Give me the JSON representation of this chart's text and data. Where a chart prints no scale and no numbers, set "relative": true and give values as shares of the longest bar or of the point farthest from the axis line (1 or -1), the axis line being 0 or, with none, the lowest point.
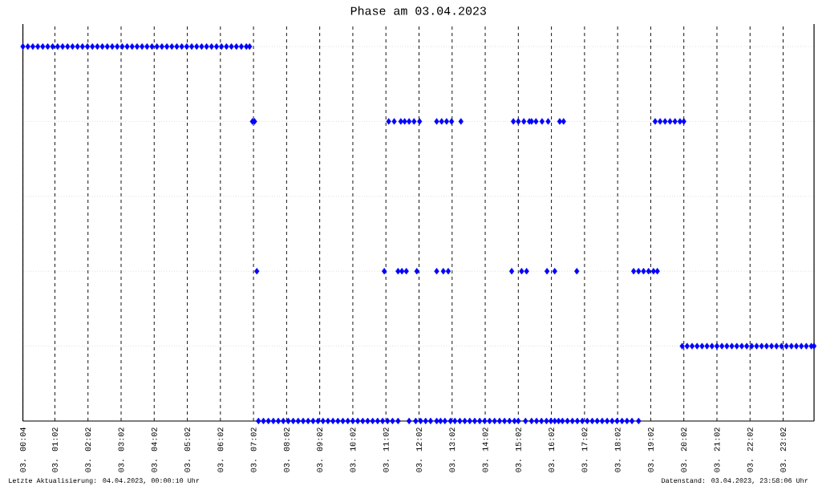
{
  "chart_data": {
    "type": "scatter",
    "title": "Phase am 03.04.2023",
    "relative": true,
    "color": "#0000ff",
    "marker": "diamond",
    "grid": true,
    "xlim": [
      "2023-04-03T00:04",
      "2023-04-03T23:58"
    ],
    "xticks": [
      {
        "value": "2023-04-03T00:04",
        "label": "03. 00:04"
      },
      {
        "value": "2023-04-03T01:02",
        "label": "03. 01:02"
      },
      {
        "value": "2023-04-03T02:02",
        "label": "03. 02:02"
      },
      {
        "value": "2023-04-03T03:02",
        "label": "03. 03:02"
      },
      {
        "value": "2023-04-03T04:02",
        "label": "03. 04:02"
      },
      {
        "value": "2023-04-03T05:02",
        "label": "03. 05:02"
      },
      {
        "value": "2023-04-03T06:02",
        "label": "03. 06:02"
      },
      {
        "value": "2023-04-03T07:02",
        "label": "03. 07:02"
      },
      {
        "value": "2023-04-03T08:02",
        "label": "03. 08:02"
      },
      {
        "value": "2023-04-03T09:02",
        "label": "03. 09:02"
      },
      {
        "value": "2023-04-03T10:02",
        "label": "03. 10:02"
      },
      {
        "value": "2023-04-03T11:02",
        "label": "03. 11:02"
      },
      {
        "value": "2023-04-03T12:02",
        "label": "03. 12:02"
      },
      {
        "value": "2023-04-03T13:02",
        "label": "03. 13:02"
      },
      {
        "value": "2023-04-03T14:02",
        "label": "03. 14:02"
      },
      {
        "value": "2023-04-03T15:02",
        "label": "03. 15:02"
      },
      {
        "value": "2023-04-03T16:02",
        "label": "03. 16:02"
      },
      {
        "value": "2023-04-03T17:02",
        "label": "03. 17:02"
      },
      {
        "value": "2023-04-03T18:02",
        "label": "03. 18:02"
      },
      {
        "value": "2023-04-03T19:02",
        "label": "03. 19:02"
      },
      {
        "value": "2023-04-03T20:02",
        "label": "03. 20:02"
      },
      {
        "value": "2023-04-03T21:02",
        "label": "03. 21:02"
      },
      {
        "value": "2023-04-03T22:02",
        "label": "03. 22:02"
      },
      {
        "value": "2023-04-03T23:02",
        "label": "03. 23:02"
      }
    ],
    "x": [
      "2023-04-03T00:04",
      "2023-04-03T00:13",
      "2023-04-03T00:22",
      "2023-04-03T00:31",
      "2023-04-03T00:40",
      "2023-04-03T00:49",
      "2023-04-03T00:58",
      "2023-04-03T01:07",
      "2023-04-03T01:16",
      "2023-04-03T01:25",
      "2023-04-03T01:34",
      "2023-04-03T01:43",
      "2023-04-03T01:52",
      "2023-04-03T02:01",
      "2023-04-03T02:10",
      "2023-04-03T02:19",
      "2023-04-03T02:28",
      "2023-04-03T02:37",
      "2023-04-03T02:46",
      "2023-04-03T02:55",
      "2023-04-03T03:04",
      "2023-04-03T03:13",
      "2023-04-03T03:22",
      "2023-04-03T03:31",
      "2023-04-03T03:40",
      "2023-04-03T03:49",
      "2023-04-03T03:58",
      "2023-04-03T04:07",
      "2023-04-03T04:16",
      "2023-04-03T04:25",
      "2023-04-03T04:34",
      "2023-04-03T04:43",
      "2023-04-03T04:52",
      "2023-04-03T05:01",
      "2023-04-03T05:10",
      "2023-04-03T05:19",
      "2023-04-03T05:28",
      "2023-04-03T05:37",
      "2023-04-03T05:46",
      "2023-04-03T05:55",
      "2023-04-03T06:04",
      "2023-04-03T06:13",
      "2023-04-03T06:22",
      "2023-04-03T06:31",
      "2023-04-03T06:40",
      "2023-04-03T06:49",
      "2023-04-03T06:55",
      "2023-04-03T07:00",
      "2023-04-03T07:04",
      "2023-04-03T11:07",
      "2023-04-03T11:17",
      "2023-04-03T11:29",
      "2023-04-03T11:36",
      "2023-04-03T11:44",
      "2023-04-03T11:53",
      "2023-04-03T12:03",
      "2023-04-03T12:34",
      "2023-04-03T12:43",
      "2023-04-03T12:52",
      "2023-04-03T13:01",
      "2023-04-03T13:18",
      "2023-04-03T14:53",
      "2023-04-03T15:02",
      "2023-04-03T15:12",
      "2023-04-03T15:22",
      "2023-04-03T15:26",
      "2023-04-03T15:34",
      "2023-04-03T15:45",
      "2023-04-03T15:56",
      "2023-04-03T16:17",
      "2023-04-03T16:24",
      "2023-04-03T19:10",
      "2023-04-03T19:19",
      "2023-04-03T19:28",
      "2023-04-03T19:37",
      "2023-04-03T19:46",
      "2023-04-03T19:55",
      "2023-04-03T20:02",
      "2023-04-03T07:08",
      "2023-04-03T10:59",
      "2023-04-03T11:24",
      "2023-04-03T11:31",
      "2023-04-03T11:39",
      "2023-04-03T11:58",
      "2023-04-03T12:34",
      "2023-04-03T12:46",
      "2023-04-03T12:55",
      "2023-04-03T14:50",
      "2023-04-03T15:08",
      "2023-04-03T15:17",
      "2023-04-03T15:54",
      "2023-04-03T16:08",
      "2023-04-03T16:48",
      "2023-04-03T18:31",
      "2023-04-03T18:40",
      "2023-04-03T18:49",
      "2023-04-03T18:58",
      "2023-04-03T19:07",
      "2023-04-03T19:14",
      "2023-04-03T19:59",
      "2023-04-03T20:08",
      "2023-04-03T20:17",
      "2023-04-03T20:26",
      "2023-04-03T20:35",
      "2023-04-03T20:44",
      "2023-04-03T20:53",
      "2023-04-03T21:02",
      "2023-04-03T21:11",
      "2023-04-03T21:20",
      "2023-04-03T21:29",
      "2023-04-03T21:38",
      "2023-04-03T21:47",
      "2023-04-03T21:56",
      "2023-04-03T22:05",
      "2023-04-03T22:14",
      "2023-04-03T22:23",
      "2023-04-03T22:32",
      "2023-04-03T22:41",
      "2023-04-03T22:50",
      "2023-04-03T22:59",
      "2023-04-03T23:08",
      "2023-04-03T23:17",
      "2023-04-03T23:26",
      "2023-04-03T23:35",
      "2023-04-03T23:44",
      "2023-04-03T23:53",
      "2023-04-03T23:58",
      "2023-04-03T07:11",
      "2023-04-03T07:20",
      "2023-04-03T07:29",
      "2023-04-03T07:38",
      "2023-04-03T07:47",
      "2023-04-03T07:56",
      "2023-04-03T08:05",
      "2023-04-03T08:14",
      "2023-04-03T08:23",
      "2023-04-03T08:32",
      "2023-04-03T08:41",
      "2023-04-03T08:50",
      "2023-04-03T08:59",
      "2023-04-03T09:08",
      "2023-04-03T09:17",
      "2023-04-03T09:26",
      "2023-04-03T09:35",
      "2023-04-03T09:44",
      "2023-04-03T09:53",
      "2023-04-03T10:02",
      "2023-04-03T10:11",
      "2023-04-03T10:20",
      "2023-04-03T10:29",
      "2023-04-03T10:38",
      "2023-04-03T10:47",
      "2023-04-03T10:56",
      "2023-04-03T11:05",
      "2023-04-03T11:14",
      "2023-04-03T11:24",
      "2023-04-03T11:44",
      "2023-04-03T11:56",
      "2023-04-03T12:05",
      "2023-04-03T12:14",
      "2023-04-03T12:23",
      "2023-04-03T12:34",
      "2023-04-03T12:41",
      "2023-04-03T12:49",
      "2023-04-03T12:59",
      "2023-04-03T13:07",
      "2023-04-03T13:16",
      "2023-04-03T13:25",
      "2023-04-03T13:34",
      "2023-04-03T13:43",
      "2023-04-03T13:52",
      "2023-04-03T14:01",
      "2023-04-03T14:10",
      "2023-04-03T14:19",
      "2023-04-03T14:28",
      "2023-04-03T14:37",
      "2023-04-03T14:46",
      "2023-04-03T14:55",
      "2023-04-03T15:02",
      "2023-04-03T15:15",
      "2023-04-03T15:26",
      "2023-04-03T15:35",
      "2023-04-03T15:44",
      "2023-04-03T15:53",
      "2023-04-03T16:01",
      "2023-04-03T16:08",
      "2023-04-03T16:15",
      "2023-04-03T16:22",
      "2023-04-03T16:31",
      "2023-04-03T16:40",
      "2023-04-03T16:49",
      "2023-04-03T16:58",
      "2023-04-03T17:07",
      "2023-04-03T17:16",
      "2023-04-03T17:25",
      "2023-04-03T17:34",
      "2023-04-03T17:43",
      "2023-04-03T17:52",
      "2023-04-03T18:01",
      "2023-04-03T18:10",
      "2023-04-03T18:19",
      "2023-04-03T18:28",
      "2023-04-03T18:40"
    ],
    "values": [
      1,
      1,
      1,
      1,
      1,
      1,
      1,
      1,
      1,
      1,
      1,
      1,
      1,
      1,
      1,
      1,
      1,
      1,
      1,
      1,
      1,
      1,
      1,
      1,
      1,
      1,
      1,
      1,
      1,
      1,
      1,
      1,
      1,
      1,
      1,
      1,
      1,
      1,
      1,
      1,
      1,
      1,
      1,
      1,
      1,
      1,
      1,
      0.8,
      0.8,
      0.8,
      0.8,
      0.8,
      0.8,
      0.8,
      0.8,
      0.8,
      0.8,
      0.8,
      0.8,
      0.8,
      0.8,
      0.8,
      0.8,
      0.8,
      0.8,
      0.8,
      0.8,
      0.8,
      0.8,
      0.8,
      0.8,
      0.8,
      0.8,
      0.8,
      0.8,
      0.8,
      0.8,
      0.8,
      0.4,
      0.4,
      0.4,
      0.4,
      0.4,
      0.4,
      0.4,
      0.4,
      0.4,
      0.4,
      0.4,
      0.4,
      0.4,
      0.4,
      0.4,
      0.4,
      0.4,
      0.4,
      0.4,
      0.4,
      0.4,
      0.2,
      0.2,
      0.2,
      0.2,
      0.2,
      0.2,
      0.2,
      0.2,
      0.2,
      0.2,
      0.2,
      0.2,
      0.2,
      0.2,
      0.2,
      0.2,
      0.2,
      0.2,
      0.2,
      0.2,
      0.2,
      0.2,
      0.2,
      0.2,
      0.2,
      0.2,
      0.2,
      0.2,
      0,
      0,
      0,
      0,
      0,
      0,
      0,
      0,
      0,
      0,
      0,
      0,
      0,
      0,
      0,
      0,
      0,
      0,
      0,
      0,
      0,
      0,
      0,
      0,
      0,
      0,
      0,
      0,
      0,
      0,
      0,
      0,
      0,
      0,
      0,
      0,
      0,
      0,
      0,
      0,
      0,
      0,
      0,
      0,
      0,
      0,
      0,
      0,
      0,
      0,
      0,
      0,
      0,
      0,
      0,
      0,
      0,
      0,
      0,
      0,
      0,
      0,
      0,
      0,
      0,
      0,
      0,
      0,
      0,
      0,
      0,
      0,
      0,
      0,
      0,
      0
    ],
    "annotations": [
      "Letzte Aktualisierung: 04.04.2023, 00:00:10 Uhr",
      "Datenstand: 03.04.2023, 23:58:06 Uhr"
    ]
  }
}
